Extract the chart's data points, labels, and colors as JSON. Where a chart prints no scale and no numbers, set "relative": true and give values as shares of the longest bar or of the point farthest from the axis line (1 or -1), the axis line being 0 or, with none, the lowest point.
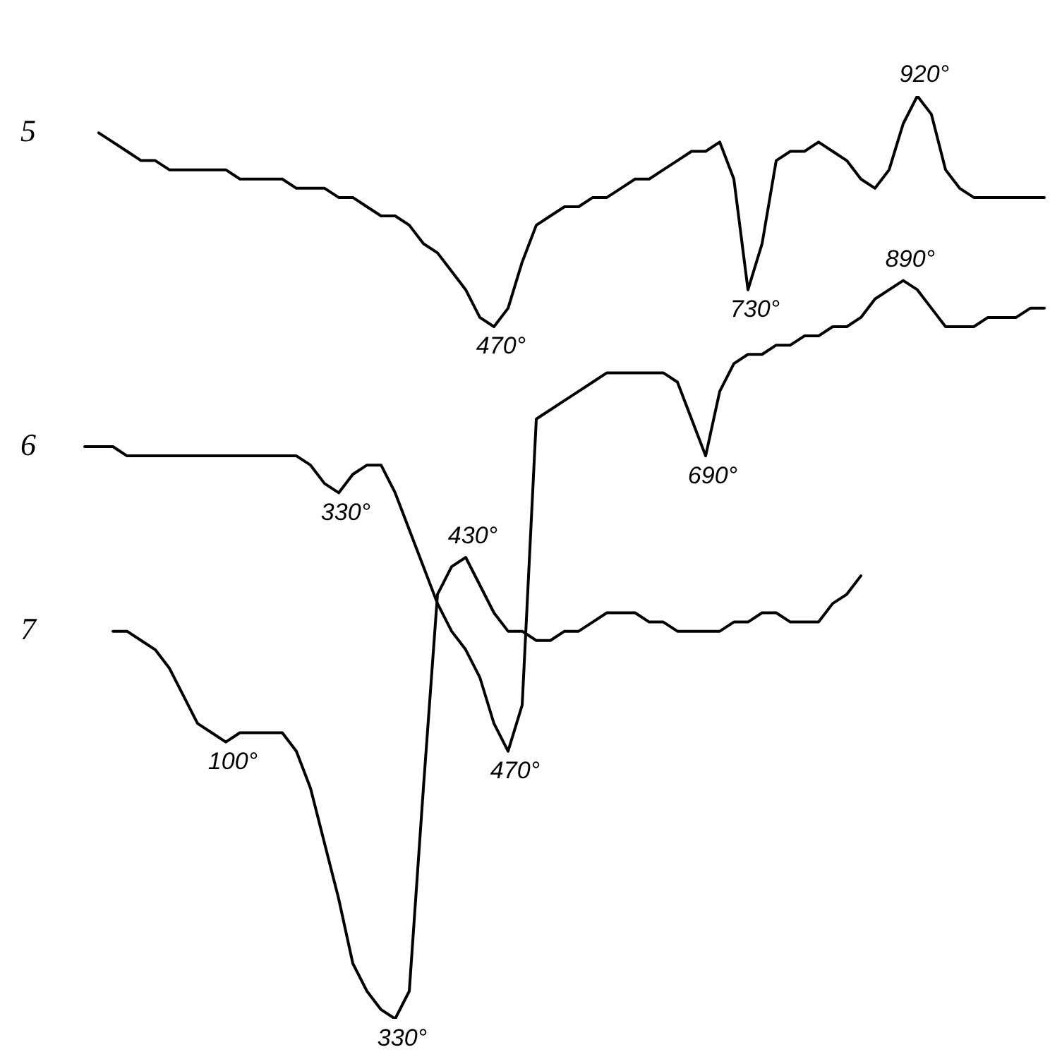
{
  "chart_data": {
    "type": "line",
    "relative": true,
    "marker": "none",
    "line_style": "solid",
    "categories": [
      null,
      null,
      null,
      null,
      null,
      null,
      null,
      null,
      null,
      null,
      null,
      null,
      null,
      null,
      null,
      null,
      null,
      null,
      null,
      null,
      null,
      null,
      null,
      null,
      null,
      null,
      null,
      null,
      null,
      null,
      null,
      null,
      null,
      null,
      null,
      null,
      null,
      null,
      null,
      null,
      null,
      null,
      null,
      null,
      null,
      null,
      null,
      null,
      null,
      null,
      null,
      null,
      null,
      null,
      null,
      null,
      null,
      null,
      null,
      null,
      null,
      null,
      null,
      null,
      null,
      null,
      null,
      null,
      null
    ],
    "series": [
      {
        "name": "5",
        "color": "#000000",
        "values": [
          null,
          0.96,
          0.95,
          0.94,
          0.93,
          0.93,
          0.92,
          0.92,
          0.92,
          0.92,
          0.92,
          0.91,
          0.91,
          0.91,
          0.91,
          0.9,
          0.9,
          0.9,
          0.89,
          0.89,
          0.88,
          0.87,
          0.87,
          0.86,
          0.84,
          0.83,
          0.81,
          0.79,
          0.76,
          0.75,
          0.77,
          0.82,
          0.86,
          0.87,
          0.88,
          0.88,
          0.89,
          0.89,
          0.9,
          0.91,
          0.91,
          0.92,
          0.93,
          0.94,
          0.94,
          0.95,
          0.91,
          0.79,
          0.84,
          0.93,
          0.94,
          0.94,
          0.95,
          0.94,
          0.93,
          0.91,
          0.9,
          0.92,
          0.97,
          1.0,
          0.98,
          0.92,
          0.9,
          0.89,
          0.89,
          0.89,
          0.89,
          0.89,
          0.89
        ]
      },
      {
        "name": "6",
        "color": "#000000",
        "values": [
          0.62,
          0.62,
          0.62,
          0.61,
          0.61,
          0.61,
          0.61,
          0.61,
          0.61,
          0.61,
          0.61,
          0.61,
          0.61,
          0.61,
          0.61,
          0.61,
          0.6,
          0.58,
          0.57,
          0.59,
          0.6,
          0.6,
          0.57,
          0.53,
          0.49,
          0.45,
          0.42,
          0.4,
          0.37,
          0.32,
          0.29,
          0.34,
          0.65,
          0.66,
          0.67,
          0.68,
          0.69,
          0.7,
          0.7,
          0.7,
          0.7,
          0.7,
          0.69,
          0.65,
          0.61,
          0.68,
          0.71,
          0.72,
          0.72,
          0.73,
          0.73,
          0.74,
          0.74,
          0.75,
          0.75,
          0.76,
          0.78,
          0.79,
          0.8,
          0.79,
          0.77,
          0.75,
          0.75,
          0.75,
          0.76,
          0.76,
          0.76,
          0.77,
          0.77
        ]
      },
      {
        "name": "7",
        "color": "#000000",
        "values": [
          null,
          null,
          0.42,
          0.42,
          0.41,
          0.4,
          0.38,
          0.35,
          0.32,
          0.31,
          0.3,
          0.31,
          0.31,
          0.31,
          0.31,
          0.29,
          0.25,
          0.19,
          0.13,
          0.06,
          0.03,
          0.01,
          0,
          0.03,
          0.25,
          0.46,
          0.49,
          0.5,
          0.47,
          0.44,
          0.42,
          0.42,
          0.41,
          0.41,
          0.42,
          0.42,
          0.43,
          0.44,
          0.44,
          0.44,
          0.43,
          0.43,
          0.42,
          0.42,
          0.42,
          0.42,
          0.43,
          0.43,
          0.44,
          0.44,
          0.43,
          0.43,
          0.43,
          0.45,
          0.46,
          0.48,
          null,
          null,
          null,
          null,
          null,
          null,
          null,
          null,
          null,
          null,
          null,
          null,
          null
        ]
      }
    ],
    "annotations": [
      {
        "text": "470°",
        "y": 0.75
      },
      {
        "text": "730°",
        "y": 0.79
      },
      {
        "text": "920°",
        "y": 1.0
      },
      {
        "text": "330°",
        "y": 0.57
      },
      {
        "text": "470°",
        "y": 0.29
      },
      {
        "text": "690°",
        "y": 0.61
      },
      {
        "text": "890°",
        "y": 0.8
      },
      {
        "text": "100°",
        "y": 0.3
      },
      {
        "text": "330°",
        "y": 0
      },
      {
        "text": "430°",
        "y": 0.5
      }
    ]
  }
}
